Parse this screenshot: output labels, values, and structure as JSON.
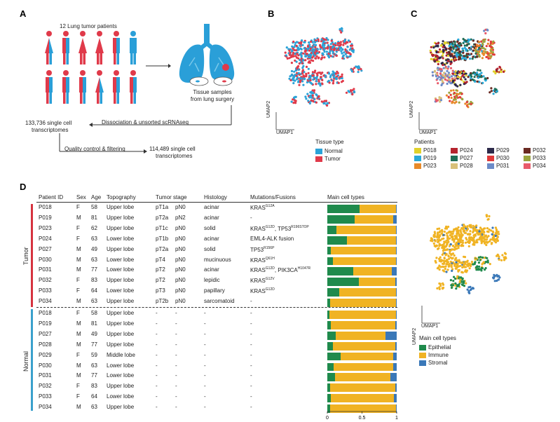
{
  "panelA": {
    "letter": "A",
    "patients_title": "12 Lung tumor patients",
    "tissue_label_1": "Tissue samples",
    "tissue_label_2": "from lung surgery",
    "step1_count_1": "133,736 single cell",
    "step1_count_2": "transcriptomes",
    "step1_arrow_label": "Dissociation & unsorted scRNAseq",
    "step2_arrow_label": "Quality control & filtering",
    "step2_count_1": "114,489 single cell",
    "step2_count_2": "transcriptomes"
  },
  "panelB": {
    "letter": "B",
    "axis_y": "UMAP2",
    "axis_x": "UMAP1",
    "legend_title": "Tissue type",
    "legend": [
      {
        "label": "Normal",
        "color": "#2ba3d8"
      },
      {
        "label": "Tumor",
        "color": "#e03a4a"
      }
    ]
  },
  "panelC": {
    "letter": "C",
    "axis_y": "UMAP2",
    "axis_x": "UMAP1",
    "legend_title": "Patients",
    "legend": [
      {
        "label": "P018",
        "color": "#e0d12a"
      },
      {
        "label": "P024",
        "color": "#b5242e"
      },
      {
        "label": "P029",
        "color": "#2d2a4a"
      },
      {
        "label": "P032",
        "color": "#6a2a22"
      },
      {
        "label": "P019",
        "color": "#29a9d8"
      },
      {
        "label": "P027",
        "color": "#1f6e56"
      },
      {
        "label": "P030",
        "color": "#e13a3a"
      },
      {
        "label": "P033",
        "color": "#9aa43e"
      },
      {
        "label": "P023",
        "color": "#e88a2a"
      },
      {
        "label": "P028",
        "color": "#d8c07a"
      },
      {
        "label": "P031",
        "color": "#6c8bc8"
      },
      {
        "label": "P034",
        "color": "#e85a6a"
      }
    ]
  },
  "panelD": {
    "letter": "D",
    "headers": {
      "patient": "Patient ID",
      "sex": "Sex",
      "age": "Age",
      "topography": "Topography",
      "stage": "Tumor stage",
      "histology": "Histology",
      "mutations": "Mutations/Fusions",
      "celltypes": "Main cell types"
    },
    "group_tumor": "Tumor",
    "group_normal": "Normal",
    "axis_ticks": [
      "0",
      "0.5",
      "1"
    ],
    "tumor_rows": [
      {
        "id": "P018",
        "sex": "F",
        "age": "58",
        "topo": "Upper lobe",
        "t": "pT1a",
        "n": "pN0",
        "hist": "acinar",
        "mut": "KRAS",
        "mut_sup": "G12A",
        "mut2": "",
        "mut2_sup": "",
        "epi": 0.46,
        "imm": 0.53,
        "str": 0.01
      },
      {
        "id": "P019",
        "sex": "M",
        "age": "81",
        "topo": "Upper lobe",
        "t": "pT2a",
        "n": "pN2",
        "hist": "acinar",
        "mut": "-",
        "mut_sup": "",
        "mut2": "",
        "mut2_sup": "",
        "epi": 0.39,
        "imm": 0.56,
        "str": 0.05
      },
      {
        "id": "P023",
        "sex": "F",
        "age": "62",
        "topo": "Upper lobe",
        "t": "pT1c",
        "n": "pN0",
        "hist": "solid",
        "mut": "KRAS",
        "mut_sup": "G12D",
        "mut2": ", TP53",
        "mut2_sup": "R196STOP",
        "epi": 0.13,
        "imm": 0.86,
        "str": 0.01
      },
      {
        "id": "P024",
        "sex": "F",
        "age": "63",
        "topo": "Lower lobe",
        "t": "pT1b",
        "n": "pN0",
        "hist": "acinar",
        "mut": "EML4-ALK fusion",
        "mut_sup": "",
        "mut2": "",
        "mut2_sup": "",
        "epi": 0.28,
        "imm": 0.71,
        "str": 0.01
      },
      {
        "id": "P027",
        "sex": "M",
        "age": "49",
        "topo": "Upper lobe",
        "t": "pT2a",
        "n": "pN0",
        "hist": "solid",
        "mut": "TP53",
        "mut_sup": "R156P",
        "mut2": "",
        "mut2_sup": "",
        "epi": 0.05,
        "imm": 0.94,
        "str": 0.01
      },
      {
        "id": "P030",
        "sex": "M",
        "age": "63",
        "topo": "Lower lobe",
        "t": "pT4",
        "n": "pN0",
        "hist": "mucinuous",
        "mut": "KRAS",
        "mut_sup": "Q61H",
        "mut2": "",
        "mut2_sup": "",
        "epi": 0.08,
        "imm": 0.91,
        "str": 0.01
      },
      {
        "id": "P031",
        "sex": "M",
        "age": "77",
        "topo": "Lower lobe",
        "t": "pT2",
        "n": "pN0",
        "hist": "acinar",
        "mut": "KRAS",
        "mut_sup": "G12D",
        "mut2": ", PIK3CA",
        "mut2_sup": "H1047R",
        "epi": 0.37,
        "imm": 0.56,
        "str": 0.07
      },
      {
        "id": "P032",
        "sex": "F",
        "age": "83",
        "topo": "Upper lobe",
        "t": "pT2",
        "n": "pN0",
        "hist": "lepidic",
        "mut": "KRAS",
        "mut_sup": "G12V",
        "mut2": "",
        "mut2_sup": "",
        "epi": 0.45,
        "imm": 0.53,
        "str": 0.02
      },
      {
        "id": "P033",
        "sex": "F",
        "age": "64",
        "topo": "Lower lobe",
        "t": "pT3",
        "n": "pN0",
        "hist": "papillary",
        "mut": "KRAS",
        "mut_sup": "G12D",
        "mut2": "",
        "mut2_sup": "",
        "epi": 0.17,
        "imm": 0.82,
        "str": 0.01
      },
      {
        "id": "P034",
        "sex": "M",
        "age": "63",
        "topo": "Upper lobe",
        "t": "pT2b",
        "n": "pN0",
        "hist": "sarcomatoid",
        "mut": "-",
        "mut_sup": "",
        "mut2": "",
        "mut2_sup": "",
        "epi": 0.04,
        "imm": 0.95,
        "str": 0.01
      }
    ],
    "normal_rows": [
      {
        "id": "P018",
        "sex": "F",
        "age": "58",
        "topo": "Upper lobe",
        "epi": 0.03,
        "imm": 0.96,
        "str": 0.01
      },
      {
        "id": "P019",
        "sex": "M",
        "age": "81",
        "topo": "Upper lobe",
        "epi": 0.05,
        "imm": 0.93,
        "str": 0.02
      },
      {
        "id": "P027",
        "sex": "M",
        "age": "49",
        "topo": "Upper lobe",
        "epi": 0.12,
        "imm": 0.72,
        "str": 0.16
      },
      {
        "id": "P028",
        "sex": "M",
        "age": "77",
        "topo": "Upper lobe",
        "epi": 0.08,
        "imm": 0.9,
        "str": 0.02
      },
      {
        "id": "P029",
        "sex": "F",
        "age": "59",
        "topo": "Middle lobe",
        "epi": 0.19,
        "imm": 0.76,
        "str": 0.05
      },
      {
        "id": "P030",
        "sex": "M",
        "age": "63",
        "topo": "Lower lobe",
        "epi": 0.09,
        "imm": 0.86,
        "str": 0.05
      },
      {
        "id": "P031",
        "sex": "M",
        "age": "77",
        "topo": "Lower lobe",
        "epi": 0.11,
        "imm": 0.8,
        "str": 0.09
      },
      {
        "id": "P032",
        "sex": "F",
        "age": "83",
        "topo": "Upper lobe",
        "epi": 0.04,
        "imm": 0.94,
        "str": 0.02
      },
      {
        "id": "P033",
        "sex": "F",
        "age": "64",
        "topo": "Lower lobe",
        "epi": 0.05,
        "imm": 0.91,
        "str": 0.04
      },
      {
        "id": "P034",
        "sex": "M",
        "age": "63",
        "topo": "Upper lobe",
        "epi": 0.04,
        "imm": 0.95,
        "str": 0.01
      }
    ],
    "dash": "-"
  },
  "panelE": {
    "axis_y": "UMAP2",
    "axis_x": "UMAP1",
    "legend_title": "Main cell types",
    "legend": [
      {
        "label": "Epithelial",
        "color": "#1f8a4c"
      },
      {
        "label": "Immune",
        "color": "#f0b323"
      },
      {
        "label": "Stromal",
        "color": "#3a78b8"
      }
    ]
  },
  "colors": {
    "tumor_bar": "#d6333f",
    "normal_bar": "#3aa0cc",
    "epithelial": "#1f8a4c",
    "immune": "#f0b323",
    "stromal": "#3a78b8"
  }
}
